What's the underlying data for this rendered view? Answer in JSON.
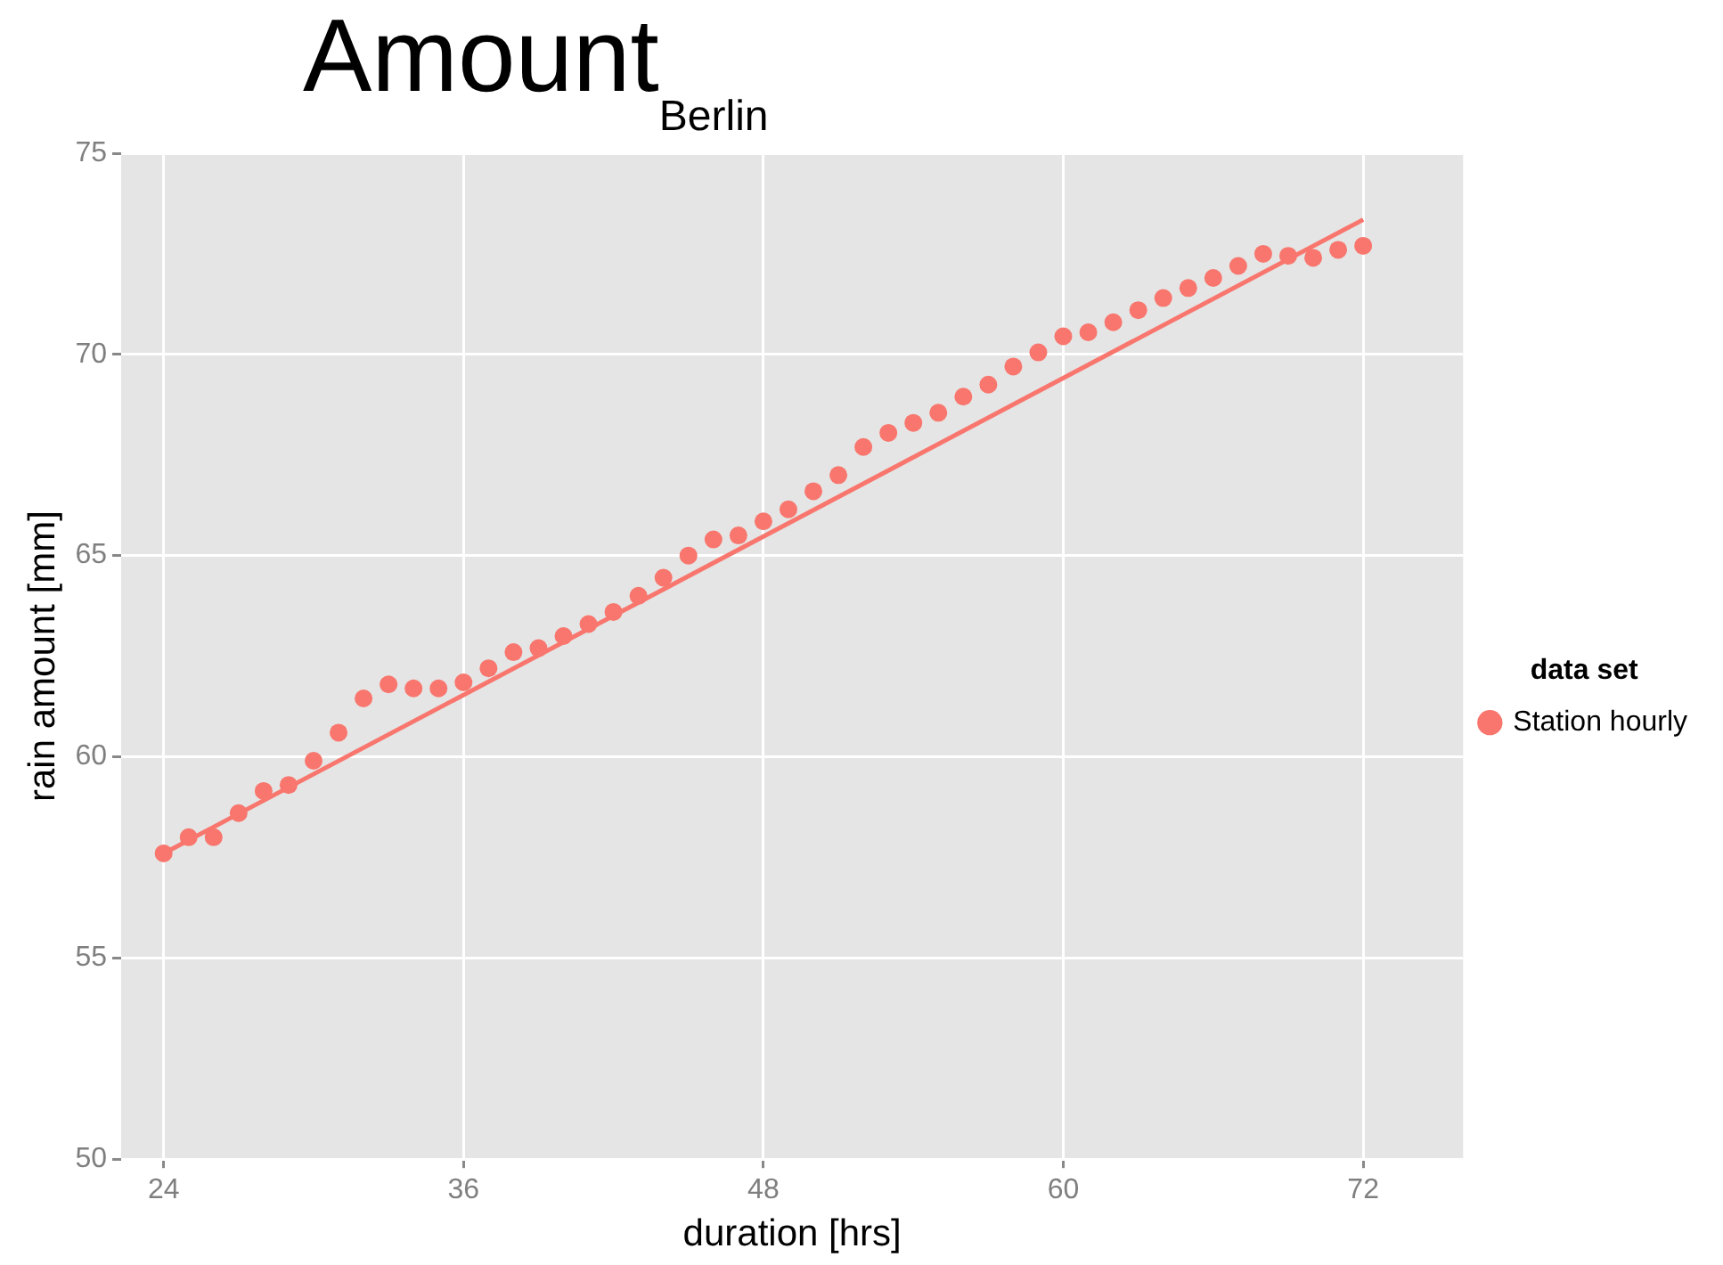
{
  "chart_data": {
    "type": "scatter",
    "title": "Amount$_{Berlin}$",
    "xlabel": "duration [hrs]",
    "ylabel": "rain amount [mm]",
    "legend_title": "data set",
    "legend": "right",
    "grid": true,
    "xlim": [
      22.3,
      76
    ],
    "xticks": [
      24,
      36,
      48,
      60,
      72
    ],
    "ylim": [
      50,
      75
    ],
    "yticks": [
      50,
      55,
      60,
      65,
      70,
      75
    ],
    "series": [
      {
        "name": "Station hourly",
        "color": "#f8766d",
        "marker": "circle",
        "x": [
          24,
          25,
          26,
          27,
          28,
          29,
          30,
          31,
          32,
          33,
          34,
          35,
          36,
          37,
          38,
          39,
          40,
          41,
          42,
          43,
          44,
          45,
          46,
          47,
          48,
          49,
          50,
          51,
          52,
          53,
          54,
          55,
          56,
          57,
          58,
          59,
          60,
          61,
          62,
          63,
          64,
          65,
          66,
          67,
          68,
          69,
          70,
          71,
          72
        ],
        "values": [
          57.6,
          58.0,
          58.0,
          58.6,
          59.15,
          59.3,
          59.9,
          60.6,
          61.45,
          61.8,
          61.7,
          61.7,
          61.85,
          62.2,
          62.6,
          62.7,
          63.0,
          63.3,
          63.6,
          64.0,
          64.45,
          65.0,
          65.4,
          65.5,
          65.85,
          66.15,
          66.6,
          67.0,
          67.7,
          68.05,
          68.3,
          68.55,
          68.95,
          69.25,
          69.7,
          70.05,
          70.45,
          70.55,
          70.8,
          71.1,
          71.4,
          71.65,
          71.9,
          72.2,
          72.5,
          72.45,
          72.4,
          72.6,
          72.7
        ]
      },
      {
        "type": "line",
        "color": "#f8766d",
        "marker": "none",
        "x": [
          24,
          72
        ],
        "values": [
          57.6,
          73.35
        ]
      }
    ]
  }
}
